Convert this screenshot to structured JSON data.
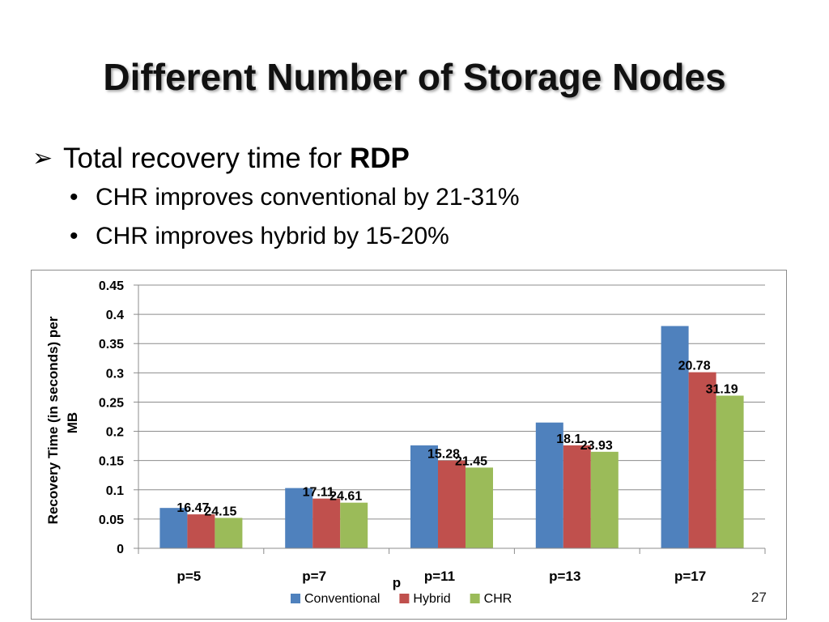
{
  "slide": {
    "title": "Different Number of Storage Nodes",
    "bullet_main_prefix": "Total recovery time for ",
    "bullet_main_bold": "RDP",
    "sub_bullets": [
      "CHR improves conventional by 21-31%",
      "CHR improves hybrid by 15-20%"
    ],
    "page_number": "27"
  },
  "colors": {
    "conventional": "#4f81bd",
    "hybrid": "#c0504d",
    "chr": "#9bbb59"
  },
  "chart_data": {
    "type": "bar",
    "categories": [
      "p=5",
      "p=7",
      "p=11",
      "p=13",
      "p=17"
    ],
    "series": [
      {
        "name": "Conventional",
        "values": [
          0.069,
          0.103,
          0.176,
          0.215,
          0.38
        ]
      },
      {
        "name": "Hybrid",
        "values": [
          0.058,
          0.085,
          0.15,
          0.176,
          0.301
        ]
      },
      {
        "name": "CHR",
        "values": [
          0.052,
          0.078,
          0.138,
          0.165,
          0.261
        ]
      }
    ],
    "annotations": [
      {
        "category": "p=5",
        "hybrid": "16.47",
        "chr": "24.15"
      },
      {
        "category": "p=7",
        "hybrid": "17.11",
        "chr": "24.61"
      },
      {
        "category": "p=11",
        "hybrid": "15.28",
        "chr": "21.45"
      },
      {
        "category": "p=13",
        "hybrid": "18.1",
        "chr": "23.93"
      },
      {
        "category": "p=17",
        "hybrid": "20.78",
        "chr": "31.19"
      }
    ],
    "yticks": [
      "0",
      "0.05",
      "0.1",
      "0.15",
      "0.2",
      "0.25",
      "0.3",
      "0.35",
      "0.4",
      "0.45"
    ],
    "ylim": [
      0,
      0.45
    ],
    "ylabel_line1": "Recovery  Time (in seconds) per",
    "ylabel_line2": "MB",
    "xlabel": "p",
    "legend_position": "bottom",
    "grid": true
  }
}
